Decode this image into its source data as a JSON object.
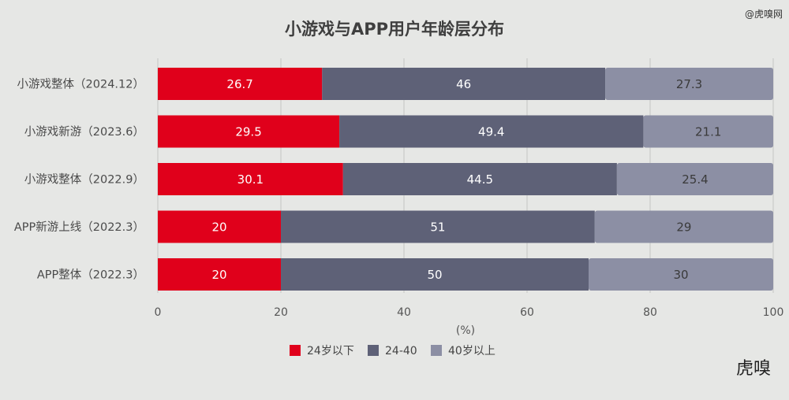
{
  "watermark": "@虎嗅网",
  "brand": "虎嗅",
  "chart_data": {
    "type": "bar",
    "orientation": "horizontal",
    "stacked": true,
    "title": "小游戏与APP用户年龄层分布",
    "xlabel": "(%)",
    "ylabel": "",
    "xlim": [
      0,
      100
    ],
    "xticks": [
      0,
      20,
      40,
      60,
      80,
      100
    ],
    "categories": [
      "小游戏整体（2024.12）",
      "小游戏新游（2023.6）",
      "小游戏整体（2022.9）",
      "APP新游上线（2022.3）",
      "APP整体（2022.3）"
    ],
    "series": [
      {
        "name": "24岁以下",
        "color": "#e0001b",
        "values": [
          26.7,
          29.5,
          30.1,
          20,
          20
        ]
      },
      {
        "name": "24-40",
        "color": "#5e6177",
        "values": [
          46,
          49.4,
          44.5,
          51,
          50
        ]
      },
      {
        "name": "40岁以上",
        "color": "#8c8fa4",
        "values": [
          27.3,
          21.1,
          25.4,
          29,
          30
        ]
      }
    ],
    "grid": false,
    "legend": "bottom-center"
  }
}
